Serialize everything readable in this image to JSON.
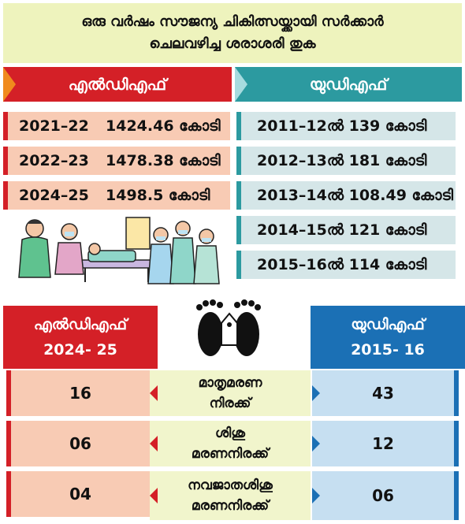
{
  "title": {
    "line1": "ഒരു വർഷം സൗജന്യ ചികിത്സയ്ക്കായി സർക്കാർ",
    "line2": "ചെലവഴിച്ച ശരാശരി തുക"
  },
  "spending": {
    "ldf_label": "എൽഡിഎഫ്",
    "udf_label": "യുഡിഎഫ്",
    "ldf_rows": [
      {
        "year": "2021–22",
        "amount": "1424.46 കോടി"
      },
      {
        "year": "2022–23",
        "amount": "1478.38 കോടി"
      },
      {
        "year": "2024–25",
        "amount": "1498.5 കോടി"
      }
    ],
    "udf_rows": [
      {
        "text": "2011–12ൽ 139 കോടി"
      },
      {
        "text": "2012–13ൽ 181 കോടി"
      },
      {
        "text": "2013–14ൽ 108.49 കോടി"
      },
      {
        "text": "2014–15ൽ 121 കോടി"
      },
      {
        "text": "2015–16ൽ 114 കോടി"
      }
    ]
  },
  "mortality": {
    "ldf_label": "എൽഡിഎഫ്",
    "ldf_period": "2024- 25",
    "udf_label": "യുഡിഎഫ്",
    "udf_period": "2015- 16",
    "rows": [
      {
        "ldf": "16",
        "label1": "മാതൃമരണ",
        "label2": "നിരക്ക്",
        "udf": "43"
      },
      {
        "ldf": "06",
        "label1": "ശിശു",
        "label2": "മരണനിരക്ക്",
        "udf": "12"
      },
      {
        "ldf": "04",
        "label1": "നവജാതശിശു",
        "label2": "മരണനിരക്ക്",
        "udf": "06"
      }
    ]
  },
  "colors": {
    "ldf_red": "#d42027",
    "udf_teal": "#2c9aa0",
    "udf_blue": "#1b70b5",
    "title_bg": "#eef3bd"
  },
  "icons": {
    "illustration": "healthcare-workers-illustration",
    "footprint": "baby-footprints-tag-icon"
  }
}
